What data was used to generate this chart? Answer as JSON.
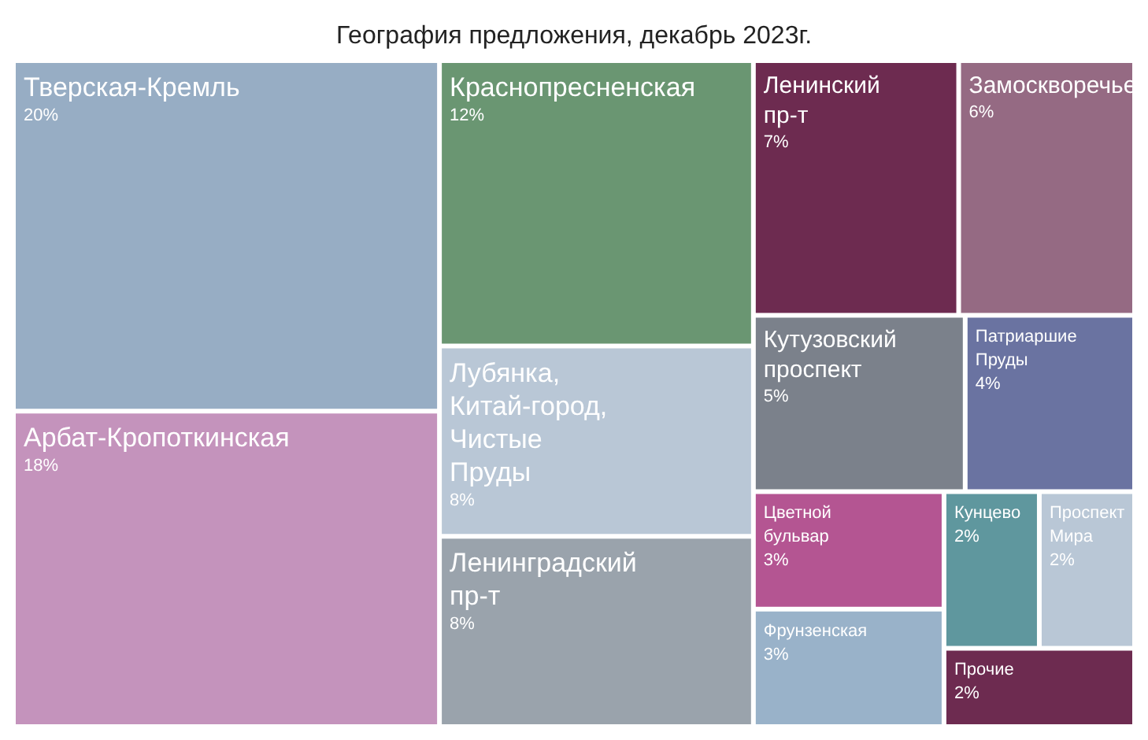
{
  "chart_data": {
    "type": "other",
    "title": "География предложения, декабрь 2023г.",
    "categories": [
      "Тверская-Кремль",
      "Арбат-Кропоткинская",
      "Краснопресненская",
      "Ленинградский пр-т",
      "Лубянка, Китай-город, Чистые Пруды",
      "Ленинский пр-т",
      "Замоскворечье",
      "Кутузовский проспект",
      "Патриаршие Пруды",
      "Фрунзенская",
      "Цветной бульвар",
      "Прочие",
      "Проспект Мира",
      "Кунцево"
    ],
    "values": [
      20,
      18,
      12,
      8,
      8,
      7,
      6,
      5,
      4,
      3,
      3,
      2,
      2,
      2
    ],
    "value_labels": [
      "20%",
      "18%",
      "12%",
      "8%",
      "8%",
      "7%",
      "6%",
      "5%",
      "4%",
      "3%",
      "3%",
      "2%",
      "2%",
      "2%"
    ],
    "colors": [
      "#97adc4",
      "#c493bc",
      "#6a9672",
      "#9aa3ac",
      "#b9c7d6",
      "#6d2b50",
      "#956a83",
      "#7b818b",
      "#6a73a1",
      "#99b2c9",
      "#b45592",
      "#6d2b50",
      "#b9c7d6",
      "#5f979e"
    ]
  }
}
